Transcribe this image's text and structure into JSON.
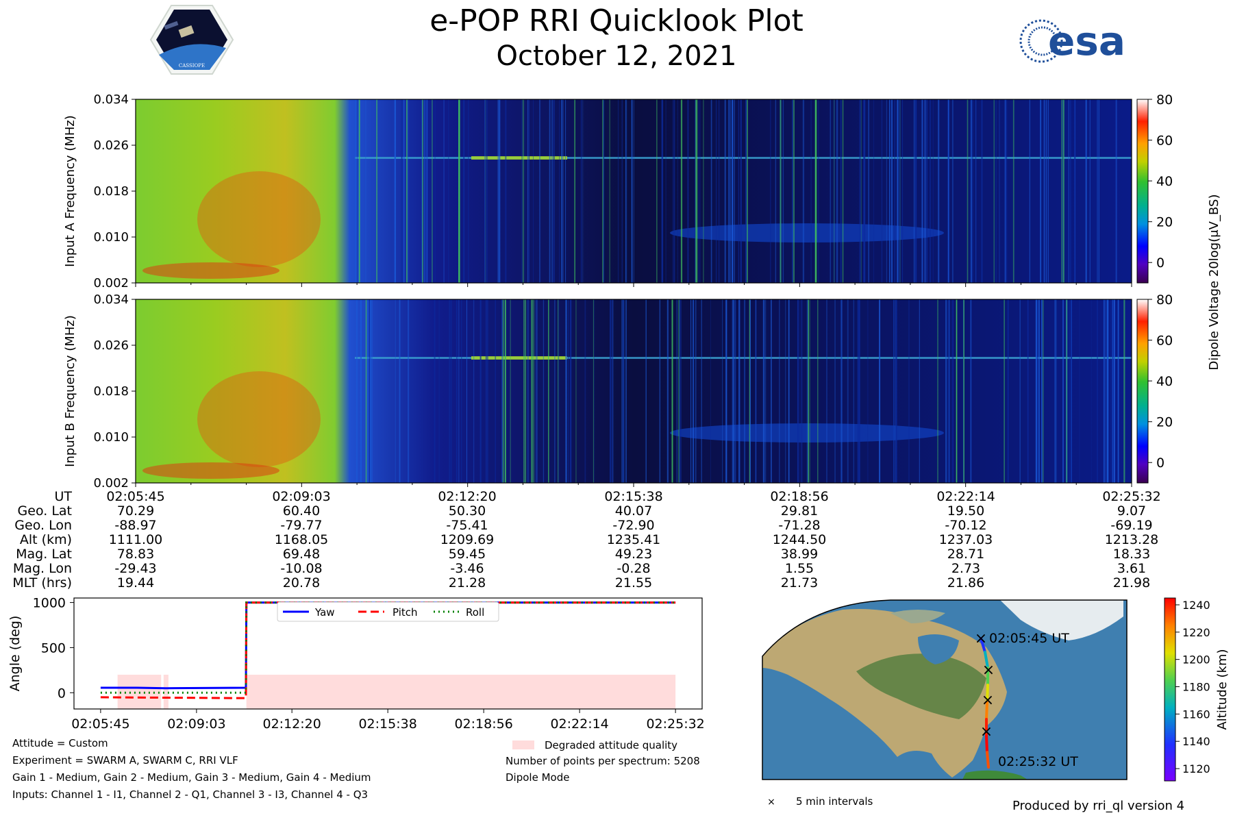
{
  "header": {
    "title": "e-POP RRI Quicklook Plot",
    "date": "October 12, 2021",
    "logo_left_text": "CASSIOPE",
    "logo_right_text": "esa"
  },
  "colors": {
    "yaw": "#0000ff",
    "pitch": "#ff0000",
    "roll": "#008000",
    "degraded": "#ffdcdc"
  },
  "spectrogram": {
    "panels": [
      {
        "ylabel": "Input A Frequency (MHz)"
      },
      {
        "ylabel": "Input B Frequency (MHz)"
      }
    ],
    "yticks": [
      "0.002",
      "0.010",
      "0.018",
      "0.026",
      "0.034"
    ],
    "colorbar_ticks": [
      "0",
      "20",
      "40",
      "60",
      "80"
    ],
    "colorbar_label": "Dipole Voltage 20log(μV_BS)"
  },
  "ephemeris": {
    "row_labels": [
      "UT",
      "Geo. Lat",
      "Geo. Lon",
      "Alt (km)",
      "Mag. Lat",
      "Mag. Lon",
      "MLT (hrs)"
    ],
    "columns": [
      [
        "02:05:45",
        "70.29",
        "-88.97",
        "1111.00",
        "78.83",
        "-29.43",
        "19.44"
      ],
      [
        "02:09:03",
        "60.40",
        "-79.77",
        "1168.05",
        "69.48",
        "-10.08",
        "20.78"
      ],
      [
        "02:12:20",
        "50.30",
        "-75.41",
        "1209.69",
        "59.45",
        "-3.46",
        "21.28"
      ],
      [
        "02:15:38",
        "40.07",
        "-72.90",
        "1235.41",
        "49.23",
        "-0.28",
        "21.55"
      ],
      [
        "02:18:56",
        "29.81",
        "-71.28",
        "1244.50",
        "38.99",
        "1.55",
        "21.73"
      ],
      [
        "02:22:14",
        "19.50",
        "-70.12",
        "1237.03",
        "28.71",
        "2.73",
        "21.86"
      ],
      [
        "02:25:32",
        "9.07",
        "-69.19",
        "1213.28",
        "18.33",
        "3.61",
        "21.98"
      ]
    ]
  },
  "chart_data": [
    {
      "type": "line",
      "ylabel": "Angle (deg)",
      "x": [
        "02:05:45",
        "02:09:03",
        "02:12:20",
        "02:15:38",
        "02:18:56",
        "02:22:14",
        "02:25:32"
      ],
      "yticks": [
        "0",
        "500",
        "1000"
      ],
      "ylim": [
        -180,
        1050
      ],
      "legend_placement": "top-center",
      "series": [
        {
          "name": "Yaw",
          "style": "solid",
          "points": [
            [
              "02:05:45",
              55
            ],
            [
              "02:07:00",
              55
            ],
            [
              "02:08:00",
              50
            ],
            [
              "02:10:45",
              55
            ],
            [
              "02:10:46",
              1000
            ],
            [
              "02:25:32",
              1000
            ]
          ]
        },
        {
          "name": "Pitch",
          "style": "dashed",
          "points": [
            [
              "02:05:45",
              -50
            ],
            [
              "02:08:00",
              -55
            ],
            [
              "02:10:45",
              -60
            ],
            [
              "02:10:46",
              1000
            ],
            [
              "02:25:32",
              1000
            ]
          ]
        },
        {
          "name": "Roll",
          "style": "dotted",
          "points": [
            [
              "02:05:45",
              0
            ],
            [
              "02:10:45",
              0
            ],
            [
              "02:10:46",
              1000
            ],
            [
              "02:25:32",
              1000
            ]
          ]
        }
      ],
      "degraded_intervals": [
        [
          "02:06:20",
          "02:07:50"
        ],
        [
          "02:07:55",
          "02:08:05"
        ],
        [
          "02:10:46",
          "02:25:32"
        ]
      ],
      "degraded_range": [
        -180,
        200
      ],
      "degraded_legend": "Degraded attitude quality"
    },
    {
      "type": "scatter",
      "ticks": [
        "1120",
        "1140",
        "1160",
        "1180",
        "1200",
        "1220",
        "1240"
      ],
      "label": "Altitude (km)",
      "range": [
        1111,
        1245
      ],
      "start_label": "02:05:45 UT",
      "end_label": "02:25:32 UT",
      "legend": "5 min intervals"
    }
  ],
  "info": {
    "left": [
      "Attitude = Custom",
      "Experiment = SWARM A, SWARM C, RRI VLF",
      "Gain 1 - Medium, Gain 2 - Medium, Gain 3 - Medium, Gain 4 - Medium",
      "Inputs: Channel 1 - I1, Channel 2 - Q1, Channel 3 - I3, Channel 4 - Q3"
    ],
    "right": [
      "Number of points per spectrum: 5208",
      "Dipole Mode"
    ],
    "footer": "Produced by rri_ql version 4"
  }
}
